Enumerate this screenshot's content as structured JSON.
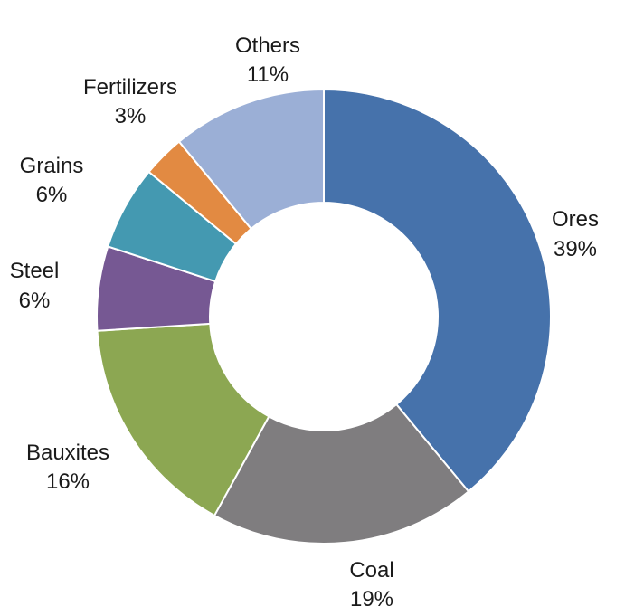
{
  "chart_data": {
    "type": "pie",
    "donut": true,
    "title": "",
    "legend": "none",
    "slices": [
      {
        "label": "Ores",
        "value": 39,
        "value_label": "39%",
        "color": "#4672AB"
      },
      {
        "label": "Coal",
        "value": 19,
        "value_label": "19%",
        "color": "#7F7D7F"
      },
      {
        "label": "Bauxites",
        "value": 16,
        "value_label": "16%",
        "color": "#8CA752"
      },
      {
        "label": "Steel",
        "value": 6,
        "value_label": "6%",
        "color": "#765893"
      },
      {
        "label": "Grains",
        "value": 6,
        "value_label": "6%",
        "color": "#4499B1"
      },
      {
        "label": "Fertilizers",
        "value": 3,
        "value_label": "3%",
        "color": "#E28A42"
      },
      {
        "label": "Others",
        "value": 11,
        "value_label": "11%",
        "color": "#9BAFD6"
      }
    ]
  }
}
